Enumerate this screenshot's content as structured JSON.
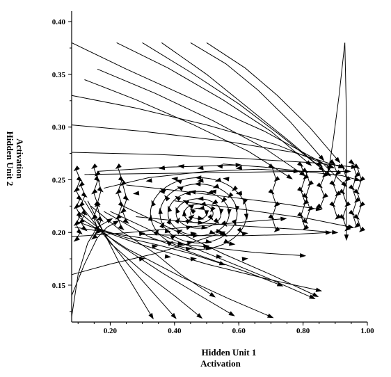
{
  "chart_data": {
    "type": "vector-field",
    "title": "",
    "xlabel_lines": [
      "Hidden Unit 1",
      "Activation"
    ],
    "ylabel_lines": [
      "Hidden Unit 2",
      "Activation"
    ],
    "xlim": [
      0.08,
      1.0
    ],
    "ylim": [
      0.115,
      0.41
    ],
    "xticks": [
      0.2,
      0.4,
      0.6,
      0.8,
      1.0
    ],
    "xtick_labels": [
      "0.20",
      "0.40",
      "0.60",
      "0.80",
      "1.00"
    ],
    "yticks": [
      0.15,
      0.2,
      0.25,
      0.3,
      0.35,
      0.4
    ],
    "ytick_labels": [
      "0.15",
      "0.20",
      "0.25",
      "0.30",
      "0.35",
      "0.40"
    ],
    "grid": false,
    "legend": "none",
    "line_color": "#000000",
    "trajectories": [
      {
        "x": [
          0.08,
          0.25,
          0.46,
          0.68,
          0.86,
          0.93
        ],
        "y": [
          0.38,
          0.355,
          0.326,
          0.296,
          0.266,
          0.245
        ]
      },
      {
        "x": [
          0.08,
          0.28,
          0.5,
          0.72,
          0.89
        ],
        "y": [
          0.33,
          0.318,
          0.302,
          0.283,
          0.262
        ]
      },
      {
        "x": [
          0.08,
          0.3,
          0.55,
          0.77,
          0.92
        ],
        "y": [
          0.302,
          0.296,
          0.287,
          0.276,
          0.262
        ]
      },
      {
        "x": [
          0.08,
          0.35,
          0.62,
          0.84,
          0.96
        ],
        "y": [
          0.276,
          0.274,
          0.27,
          0.266,
          0.262
        ]
      },
      {
        "x": [
          0.22,
          0.38,
          0.55,
          0.7,
          0.82
        ],
        "y": [
          0.38,
          0.356,
          0.326,
          0.296,
          0.265
        ]
      },
      {
        "x": [
          0.3,
          0.45,
          0.6,
          0.73,
          0.86
        ],
        "y": [
          0.38,
          0.352,
          0.322,
          0.292,
          0.26
        ]
      },
      {
        "x": [
          0.36,
          0.5,
          0.63,
          0.76,
          0.88
        ],
        "y": [
          0.38,
          0.35,
          0.318,
          0.286,
          0.255
        ]
      },
      {
        "x": [
          0.16,
          0.34,
          0.52,
          0.68,
          0.8
        ],
        "y": [
          0.355,
          0.332,
          0.306,
          0.28,
          0.255
        ]
      },
      {
        "x": [
          0.12,
          0.28,
          0.46,
          0.63,
          0.76
        ],
        "y": [
          0.345,
          0.326,
          0.302,
          0.277,
          0.252
        ]
      },
      {
        "x": [
          0.45,
          0.56,
          0.66,
          0.76,
          0.86
        ],
        "y": [
          0.38,
          0.36,
          0.335,
          0.305,
          0.27
        ]
      },
      {
        "x": [
          0.5,
          0.62,
          0.72,
          0.82,
          0.91
        ],
        "y": [
          0.38,
          0.356,
          0.33,
          0.3,
          0.268
        ]
      },
      {
        "x": [
          0.93,
          0.935,
          0.935,
          0.935
        ],
        "y": [
          0.38,
          0.31,
          0.25,
          0.195
        ]
      },
      {
        "x": [
          0.93,
          0.912,
          0.895,
          0.88
        ],
        "y": [
          0.38,
          0.33,
          0.29,
          0.26
        ]
      },
      {
        "x": [
          0.08,
          0.1,
          0.13,
          0.16,
          0.2
        ],
        "y": [
          0.12,
          0.16,
          0.19,
          0.205,
          0.212
        ]
      },
      {
        "x": [
          0.08,
          0.2,
          0.34,
          0.45,
          0.55
        ],
        "y": [
          0.16,
          0.17,
          0.18,
          0.19,
          0.2
        ]
      },
      {
        "x": [
          0.08,
          0.26,
          0.44,
          0.62,
          0.74
        ],
        "y": [
          0.196,
          0.2,
          0.205,
          0.21,
          0.213
        ]
      },
      {
        "x": [
          0.09,
          0.25,
          0.45,
          0.65,
          0.8
        ],
        "y": [
          0.205,
          0.197,
          0.188,
          0.181,
          0.178
        ]
      },
      {
        "x": [
          0.1,
          0.28,
          0.5,
          0.7,
          0.85
        ],
        "y": [
          0.21,
          0.19,
          0.17,
          0.155,
          0.145
        ]
      },
      {
        "x": [
          0.1,
          0.25,
          0.42,
          0.57,
          0.7
        ],
        "y": [
          0.215,
          0.185,
          0.158,
          0.137,
          0.12
        ]
      },
      {
        "x": [
          0.1,
          0.22,
          0.36,
          0.48,
          0.58
        ],
        "y": [
          0.22,
          0.19,
          0.162,
          0.14,
          0.122
        ]
      },
      {
        "x": [
          0.11,
          0.2,
          0.3,
          0.4,
          0.48
        ],
        "y": [
          0.225,
          0.19,
          0.163,
          0.14,
          0.12
        ]
      },
      {
        "x": [
          0.12,
          0.19,
          0.26,
          0.33,
          0.4
        ],
        "y": [
          0.23,
          0.195,
          0.168,
          0.144,
          0.12
        ]
      },
      {
        "x": [
          0.13,
          0.18,
          0.23,
          0.28,
          0.33
        ],
        "y": [
          0.23,
          0.2,
          0.17,
          0.145,
          0.12
        ]
      },
      {
        "x": [
          0.14,
          0.24,
          0.34,
          0.42,
          0.52
        ],
        "y": [
          0.225,
          0.2,
          0.18,
          0.16,
          0.14
        ]
      },
      {
        "x": [
          0.18,
          0.32,
          0.48,
          0.62,
          0.73
        ],
        "y": [
          0.22,
          0.196,
          0.178,
          0.163,
          0.15
        ]
      },
      {
        "x": [
          0.2,
          0.34,
          0.52,
          0.68,
          0.83
        ],
        "y": [
          0.22,
          0.2,
          0.178,
          0.158,
          0.138
        ]
      },
      {
        "x": [
          0.24,
          0.38,
          0.55,
          0.7,
          0.84
        ],
        "y": [
          0.225,
          0.205,
          0.18,
          0.16,
          0.14
        ]
      },
      {
        "x": [
          0.15,
          0.25,
          0.35,
          0.45,
          0.55
        ],
        "y": [
          0.205,
          0.195,
          0.188,
          0.18,
          0.17
        ]
      },
      {
        "x": [
          0.08,
          0.12,
          0.16,
          0.19,
          0.22
        ],
        "y": [
          0.14,
          0.17,
          0.195,
          0.205,
          0.21
        ]
      },
      {
        "x": [
          0.16,
          0.27,
          0.38,
          0.49,
          0.6
        ],
        "y": [
          0.258,
          0.26,
          0.262,
          0.263,
          0.264
        ]
      },
      {
        "x": [
          0.12,
          0.35,
          0.58,
          0.8,
          0.94
        ],
        "y": [
          0.255,
          0.256,
          0.257,
          0.258,
          0.258
        ]
      },
      {
        "x": [
          0.18,
          0.32,
          0.5,
          0.66,
          0.78
        ],
        "y": [
          0.242,
          0.252,
          0.258,
          0.26,
          0.258
        ]
      },
      {
        "x": [
          0.25,
          0.4,
          0.56,
          0.72,
          0.85
        ],
        "y": [
          0.245,
          0.24,
          0.234,
          0.228,
          0.222
        ]
      },
      {
        "x": [
          0.4,
          0.54,
          0.68,
          0.82,
          0.95
        ],
        "y": [
          0.23,
          0.225,
          0.219,
          0.213,
          0.205
        ]
      },
      {
        "x": [
          0.28,
          0.44,
          0.62,
          0.78,
          0.9
        ],
        "y": [
          0.215,
          0.21,
          0.206,
          0.203,
          0.2
        ]
      },
      {
        "x": [
          0.3,
          0.46,
          0.62,
          0.76,
          0.88
        ],
        "y": [
          0.198,
          0.197,
          0.197,
          0.198,
          0.2
        ]
      },
      {
        "x": [
          0.55,
          0.68,
          0.8,
          0.92,
          0.97
        ],
        "y": [
          0.265,
          0.262,
          0.258,
          0.254,
          0.25
        ]
      }
    ],
    "spiral": {
      "center": [
        0.475,
        0.218
      ],
      "radii": [
        [
          0.025,
          0.005
        ],
        [
          0.045,
          0.009
        ],
        [
          0.07,
          0.014
        ],
        [
          0.095,
          0.021
        ],
        [
          0.12,
          0.028
        ],
        [
          0.15,
          0.034
        ]
      ]
    },
    "arrow_columns": [
      {
        "x": 0.1,
        "y_values": [
          0.26,
          0.25,
          0.24,
          0.232,
          0.224,
          0.216,
          0.208,
          0.2,
          0.193
        ]
      },
      {
        "x": 0.115,
        "y_values": [
          0.245,
          0.235,
          0.226,
          0.218,
          0.21,
          0.203
        ]
      },
      {
        "x": 0.155,
        "y_values": [
          0.262,
          0.25,
          0.238,
          0.226,
          0.214,
          0.203,
          0.195
        ]
      },
      {
        "x": 0.165,
        "y_values": [
          0.255,
          0.24,
          0.226,
          0.212,
          0.2
        ]
      },
      {
        "x": 0.23,
        "y_values": [
          0.262,
          0.25,
          0.238,
          0.226,
          0.214,
          0.204
        ]
      },
      {
        "x": 0.245,
        "y_values": [
          0.246,
          0.232,
          0.22,
          0.21
        ]
      },
      {
        "x": 0.71,
        "y_values": [
          0.262,
          0.25,
          0.238,
          0.226,
          0.214,
          0.202
        ]
      },
      {
        "x": 0.8,
        "y_values": [
          0.264,
          0.252,
          0.24,
          0.228,
          0.216,
          0.204
        ]
      },
      {
        "x": 0.815,
        "y_values": [
          0.258,
          0.246,
          0.234,
          0.222,
          0.21
        ]
      },
      {
        "x": 0.86,
        "y_values": [
          0.264,
          0.254,
          0.244,
          0.234,
          0.224
        ]
      },
      {
        "x": 0.9,
        "y_values": [
          0.266,
          0.256,
          0.246,
          0.236,
          0.226,
          0.214
        ]
      },
      {
        "x": 0.93,
        "y_values": [
          0.262,
          0.25,
          0.238,
          0.226,
          0.214,
          0.203
        ]
      },
      {
        "x": 0.96,
        "y_values": [
          0.266,
          0.254,
          0.242,
          0.23,
          0.218,
          0.206
        ]
      },
      {
        "x": 0.975,
        "y_values": [
          0.262,
          0.25,
          0.238,
          0.226,
          0.214,
          0.202
        ]
      }
    ],
    "arrow_rows": [
      {
        "y": 0.262,
        "x_values": [
          0.36,
          0.42,
          0.48,
          0.54,
          0.6
        ]
      },
      {
        "y": 0.25,
        "x_values": [
          0.32,
          0.4,
          0.48,
          0.56
        ]
      },
      {
        "y": 0.238,
        "x_values": [
          0.28,
          0.36,
          0.44,
          0.52,
          0.6
        ]
      },
      {
        "y": 0.2,
        "x_values": [
          0.3,
          0.38,
          0.46,
          0.54,
          0.62
        ]
      },
      {
        "y": 0.188,
        "x_values": [
          0.34,
          0.42,
          0.5,
          0.58
        ]
      },
      {
        "y": 0.176,
        "x_values": [
          0.3,
          0.38,
          0.46,
          0.54,
          0.62
        ]
      }
    ]
  }
}
